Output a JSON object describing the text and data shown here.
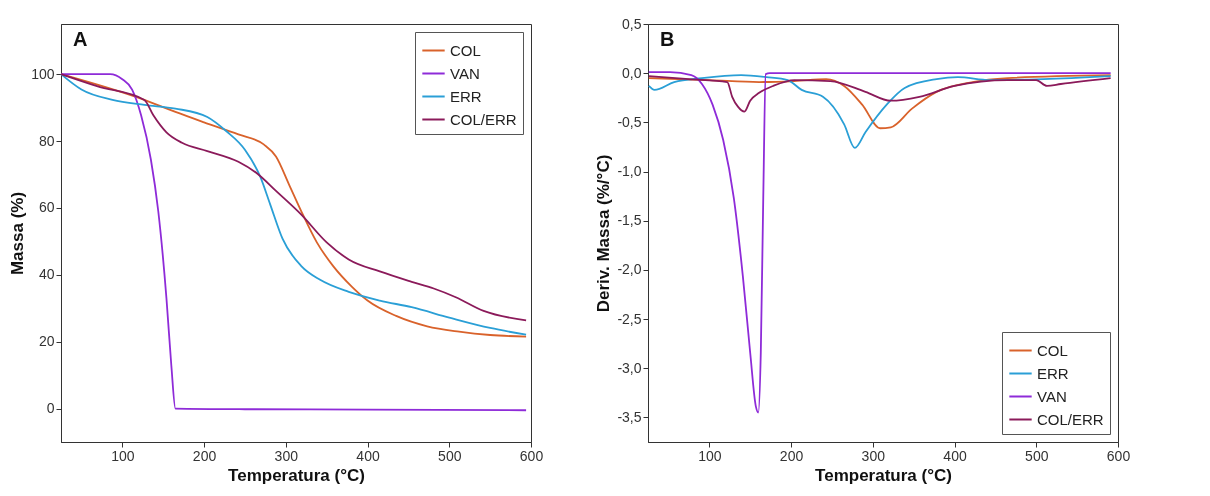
{
  "chart_data": [
    {
      "type": "line",
      "annotations": [
        "A"
      ],
      "xlabel": "Temperatura (°C)",
      "ylabel": "Massa (%)",
      "xlim": [
        25,
        600
      ],
      "ylim": [
        -10,
        115
      ],
      "xticks": [
        100,
        200,
        300,
        400,
        500,
        600
      ],
      "yticks": [
        0,
        20,
        40,
        60,
        80,
        100
      ],
      "grid": false,
      "legend": "top right",
      "series": [
        {
          "name": "COL",
          "color": "#d9622b",
          "x": [
            25,
            127,
            165,
            200,
            242,
            273,
            288,
            304,
            319,
            338,
            358,
            381,
            400,
            435,
            473,
            512,
            550,
            594
          ],
          "values": [
            100,
            92.3,
            88.7,
            85.6,
            82,
            79,
            75.4,
            67,
            59,
            49.7,
            42.6,
            36.4,
            32.3,
            27.7,
            24.6,
            23,
            22,
            21.5
          ]
        },
        {
          "name": "VAN",
          "color": "#8e2bd8",
          "x": [
            25,
            50,
            85,
            100,
            112,
            123,
            135,
            144,
            154,
            160,
            165,
            250,
            400,
            594
          ],
          "values": [
            100,
            100,
            100,
            98.5,
            95.4,
            87.7,
            74.4,
            59,
            33,
            12.8,
            0,
            -0.2,
            -0.3,
            -0.5
          ]
        },
        {
          "name": "ERR",
          "color": "#2a9fd6",
          "x": [
            25,
            50,
            88,
            127,
            165,
            204,
            227,
            250,
            269,
            281,
            296,
            319,
            342,
            377,
            415,
            454,
            500,
            550,
            594
          ],
          "values": [
            100,
            95.4,
            92.3,
            90.8,
            89.7,
            87.2,
            83,
            77.4,
            69.2,
            61,
            50.8,
            42.6,
            38.5,
            34.9,
            32.3,
            30.3,
            27.2,
            24.1,
            22.1
          ]
        },
        {
          "name": "COL/ERR",
          "color": "#8b1a5a",
          "x": [
            25,
            69,
            127,
            138,
            154,
            173,
            204,
            242,
            265,
            288,
            319,
            350,
            377,
            415,
            454,
            481,
            508,
            542,
            594
          ],
          "values": [
            100,
            96.4,
            92.3,
            87.7,
            82.6,
            79.5,
            77,
            73.8,
            70.3,
            65.1,
            58,
            49.7,
            44.6,
            41,
            37.9,
            35.9,
            33.3,
            29.2,
            26.4
          ]
        }
      ]
    },
    {
      "type": "line",
      "annotations": [
        "B"
      ],
      "xlabel": "Temperatura (°C)",
      "ylabel": "Deriv. Massa (%/°C)",
      "xlim": [
        25,
        600
      ],
      "ylim": [
        -3.75,
        0.5
      ],
      "xticks": [
        100,
        200,
        300,
        400,
        500,
        600
      ],
      "yticks": [
        {
          "value": 0.5,
          "label": "0,5"
        },
        {
          "value": 0,
          "label": "0,0"
        },
        {
          "value": -0.5,
          "label": "-0,5"
        },
        {
          "value": -1,
          "label": "-1,0"
        },
        {
          "value": -1.5,
          "label": "-1,5"
        },
        {
          "value": -2,
          "label": "-2,0"
        },
        {
          "value": -2.5,
          "label": "-2,5"
        },
        {
          "value": -3,
          "label": "-3,0"
        },
        {
          "value": -3.5,
          "label": "-3,5"
        }
      ],
      "grid": false,
      "legend": "bottom right",
      "series": [
        {
          "name": "COL",
          "color": "#d9622b",
          "x": [
            26,
            100,
            161,
            204,
            243,
            265,
            287,
            309,
            322,
            348,
            378,
            422,
            465,
            591
          ],
          "values": [
            -0.05,
            -0.07,
            -0.09,
            -0.08,
            -0.06,
            -0.13,
            -0.32,
            -0.56,
            -0.55,
            -0.36,
            -0.19,
            -0.09,
            -0.05,
            -0.02
          ]
        },
        {
          "name": "ERR",
          "color": "#2a9fd6",
          "x": [
            26,
            33,
            57,
            91,
            139,
            170,
            196,
            213,
            239,
            265,
            278,
            291,
            317,
            339,
            378,
            404,
            443,
            509,
            591
          ],
          "values": [
            -0.13,
            -0.17,
            -0.09,
            -0.05,
            -0.02,
            -0.04,
            -0.07,
            -0.17,
            -0.24,
            -0.52,
            -0.76,
            -0.6,
            -0.32,
            -0.15,
            -0.06,
            -0.04,
            -0.07,
            -0.06,
            -0.03
          ]
        },
        {
          "name": "VAN",
          "color": "#8e2bd8",
          "x": [
            26,
            52,
            78,
            91,
            104,
            117,
            130,
            141,
            150,
            157,
            160,
            163,
            166,
            169,
            174,
            300,
            450,
            591
          ],
          "values": [
            0.01,
            0.01,
            -0.02,
            -0.11,
            -0.32,
            -0.68,
            -1.27,
            -2.06,
            -2.84,
            -3.39,
            -3.45,
            -2.84,
            -1.27,
            -0.01,
            0,
            0,
            0,
            0
          ]
        },
        {
          "name": "COL/ERR",
          "color": "#8b1a5a",
          "x": [
            26,
            74,
            122,
            128,
            135,
            143,
            150,
            161,
            178,
            204,
            248,
            291,
            322,
            357,
            400,
            465,
            500,
            513,
            530,
            591
          ],
          "values": [
            -0.03,
            -0.06,
            -0.09,
            -0.24,
            -0.34,
            -0.39,
            -0.28,
            -0.2,
            -0.13,
            -0.07,
            -0.08,
            -0.19,
            -0.28,
            -0.24,
            -0.13,
            -0.07,
            -0.07,
            -0.13,
            -0.11,
            -0.05
          ]
        }
      ]
    }
  ]
}
